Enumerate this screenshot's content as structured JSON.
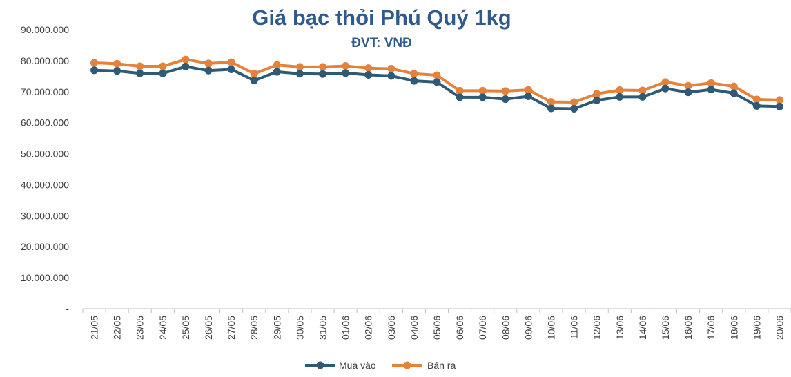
{
  "chart_data": {
    "type": "line",
    "title": "Giá bạc thỏi Phú Quý 1kg",
    "subtitle": "ĐVT: VNĐ",
    "xlabel": "",
    "ylabel": "",
    "ylim": [
      0,
      90000000
    ],
    "y_ticks": [
      0,
      10000000,
      20000000,
      30000000,
      40000000,
      50000000,
      60000000,
      70000000,
      80000000,
      90000000
    ],
    "y_tick_labels": [
      "-",
      "10.000.000",
      "20.000.000",
      "30.000.000",
      "40.000.000",
      "50.000.000",
      "60.000.000",
      "70.000.000",
      "80.000.000",
      "90.000.000"
    ],
    "categories": [
      "21/05",
      "22/05",
      "23/05",
      "24/05",
      "25/05",
      "26/05",
      "27/05",
      "28/05",
      "29/05",
      "30/05",
      "31/05",
      "01/06",
      "02/06",
      "03/06",
      "04/06",
      "05/06",
      "06/06",
      "07/06",
      "08/06",
      "09/06",
      "10/06",
      "11/06",
      "12/06",
      "13/06",
      "14/06",
      "15/06",
      "16/06",
      "17/06",
      "18/06",
      "19/06",
      "20/06"
    ],
    "grid": false,
    "legend_position": "bottom",
    "series": [
      {
        "name": "Mua vào",
        "color": "#2e5a77",
        "values": [
          76900000,
          76700000,
          75900000,
          75900000,
          78100000,
          76800000,
          77200000,
          73600000,
          76400000,
          75800000,
          75700000,
          76000000,
          75400000,
          75100000,
          73500000,
          73100000,
          68200000,
          68200000,
          67600000,
          68500000,
          64600000,
          64500000,
          67200000,
          68300000,
          68300000,
          71000000,
          69800000,
          70700000,
          69500000,
          65400000,
          65200000
        ]
      },
      {
        "name": "Bán ra",
        "color": "#e6813a",
        "values": [
          79300000,
          79000000,
          78200000,
          78200000,
          80400000,
          79100000,
          79500000,
          75800000,
          78600000,
          78000000,
          78000000,
          78300000,
          77600000,
          77400000,
          75800000,
          75300000,
          70300000,
          70300000,
          70200000,
          70600000,
          66700000,
          66600000,
          69300000,
          70500000,
          70400000,
          73100000,
          71900000,
          72800000,
          71700000,
          67500000,
          67300000
        ]
      }
    ]
  }
}
